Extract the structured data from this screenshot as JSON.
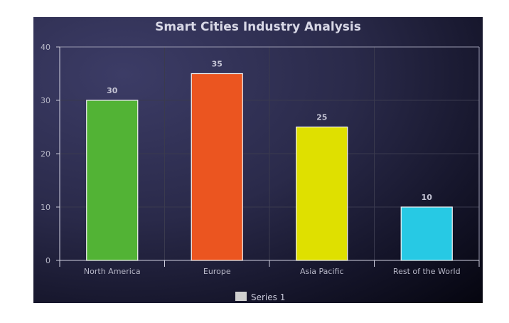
{
  "chart_data": {
    "type": "bar",
    "title": "Smart Cities Industry Analysis",
    "categories": [
      "North America",
      "Europe",
      "Asia Pacific",
      "Rest of the World"
    ],
    "series": [
      {
        "name": "Series 1",
        "values": [
          30,
          35,
          25,
          10
        ]
      }
    ],
    "data_labels": [
      "30",
      "35",
      "25",
      "10"
    ],
    "bar_colors": [
      "#52b335",
      "#eb5520",
      "#dfe000",
      "#27c9e4"
    ],
    "legend_color": "#d0d0d0",
    "ylim": [
      0,
      40
    ],
    "yticks": [
      0,
      10,
      20,
      30,
      40
    ],
    "ytick_labels": [
      "0",
      "10",
      "20",
      "30",
      "40"
    ],
    "grid": true,
    "legend_position": "bottom-center"
  }
}
